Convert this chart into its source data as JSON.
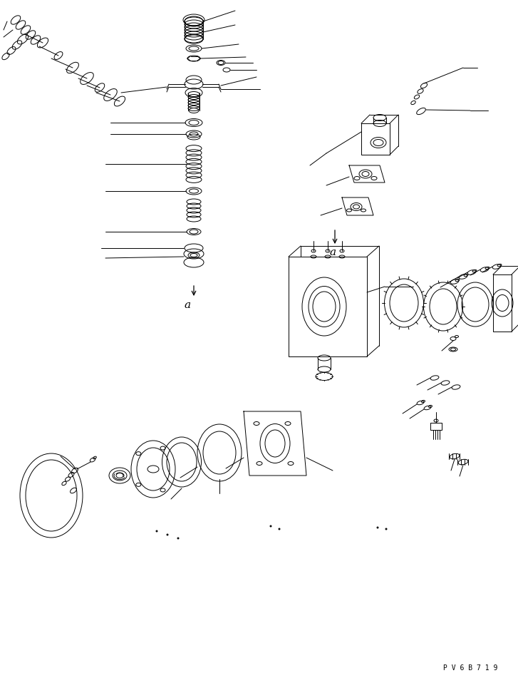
{
  "bg_color": "#ffffff",
  "lc": "#000000",
  "lw": 0.7,
  "watermark": "P V 6 B 7 1 9",
  "fig_w": 7.27,
  "fig_h": 9.58,
  "dpi": 100
}
